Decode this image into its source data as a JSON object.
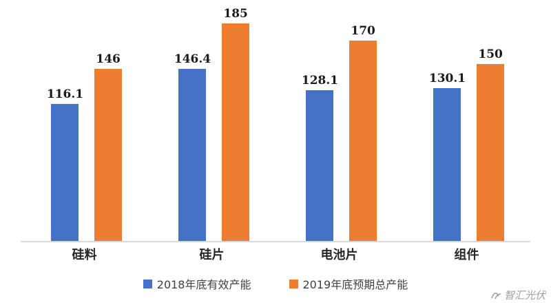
{
  "chart_data": {
    "type": "bar",
    "categories": [
      "硅料",
      "硅片",
      "电池片",
      "组件"
    ],
    "series": [
      {
        "name": "2018年底有效产能",
        "color": "#4472C4",
        "values": [
          116.1,
          146.4,
          128.1,
          130.1
        ]
      },
      {
        "name": "2019年底预期总产能",
        "color": "#ED7D31",
        "values": [
          146,
          185,
          170,
          150
        ]
      }
    ],
    "title": "",
    "xlabel": "",
    "ylabel": "",
    "ylim": [
      0,
      200
    ],
    "grid": false,
    "legend_position": "bottom",
    "axis_line_color": "#d9d9d9"
  },
  "legend": {
    "item1": "2018年底有效产能",
    "item2": "2019年底预期总产能"
  },
  "watermark": {
    "text": "智汇光伏"
  }
}
